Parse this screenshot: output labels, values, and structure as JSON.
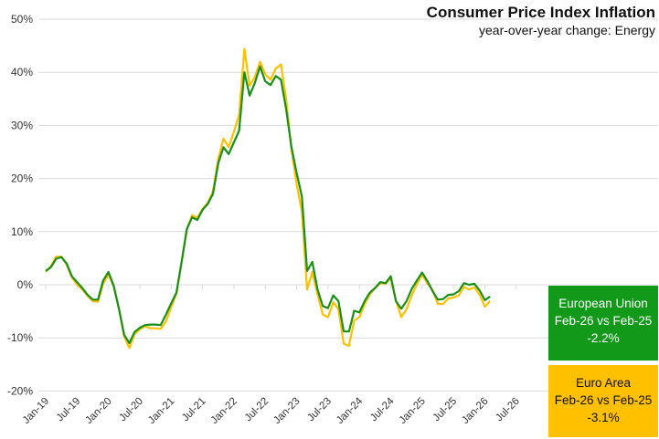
{
  "chart_data": {
    "type": "line",
    "title": "Consumer Price Index Inflation",
    "subtitle": "year-over-year change: Energy",
    "xlabel": "",
    "ylabel": "",
    "ylim": [
      -20,
      50
    ],
    "yticks": [
      -20,
      -10,
      0,
      10,
      20,
      30,
      40,
      50
    ],
    "ytick_labels": [
      "-20%",
      "-10%",
      "0%",
      "10%",
      "20%",
      "30%",
      "40%",
      "50%"
    ],
    "xtick_labels": [
      "Jan-19",
      "Jul-19",
      "Jan-20",
      "Jul-20",
      "Jan-21",
      "Jul-21",
      "Jan-22",
      "Jul-22",
      "Jan-23",
      "Jul-23",
      "Jan-24",
      "Jul-24",
      "Jan-25",
      "Jul-25",
      "Jan-26",
      "Jul-26"
    ],
    "x_start": "Jan-19",
    "x_frequency": "monthly",
    "grid": true,
    "series": [
      {
        "name": "European Union",
        "color": "#189018",
        "values": [
          2.6,
          3.3,
          4.9,
          5.2,
          4.0,
          1.6,
          0.5,
          -0.6,
          -1.9,
          -2.8,
          -2.8,
          0.8,
          2.4,
          -0.2,
          -4.5,
          -9.4,
          -11.0,
          -8.9,
          -8.1,
          -7.6,
          -7.5,
          -7.5,
          -7.6,
          -5.6,
          -3.5,
          -1.5,
          4.3,
          10.5,
          12.7,
          12.2,
          14.1,
          15.2,
          17.1,
          22.9,
          25.9,
          24.6,
          26.8,
          29.0,
          40.0,
          35.6,
          38.0,
          41.1,
          38.3,
          37.6,
          39.3,
          38.6,
          33.0,
          26.0,
          21.0,
          16.6,
          2.6,
          4.3,
          -0.9,
          -4.0,
          -4.4,
          -2.0,
          -3.1,
          -8.8,
          -8.8,
          -4.9,
          -5.2,
          -3.1,
          -1.5,
          -0.6,
          0.5,
          0.3,
          1.6,
          -3.1,
          -4.5,
          -3.1,
          -0.8,
          0.8,
          2.3,
          0.7,
          -1.2,
          -2.8,
          -2.7,
          -1.9,
          -1.8,
          -1.2,
          0.3,
          0.0,
          0.2,
          -1.1,
          -2.9,
          -2.2
        ]
      },
      {
        "name": "Euro Area",
        "color": "#ffc000",
        "values": [
          2.4,
          3.5,
          5.3,
          5.3,
          3.8,
          1.4,
          0.0,
          -0.9,
          -2.1,
          -3.1,
          -3.2,
          0.2,
          1.9,
          -0.3,
          -4.5,
          -9.7,
          -11.9,
          -9.3,
          -8.4,
          -7.8,
          -8.2,
          -8.2,
          -8.3,
          -6.9,
          -4.2,
          -1.7,
          4.3,
          10.4,
          13.1,
          12.6,
          14.3,
          15.4,
          17.6,
          23.7,
          27.5,
          25.9,
          28.8,
          32.0,
          44.4,
          37.5,
          39.1,
          42.0,
          39.6,
          38.6,
          40.7,
          41.5,
          34.9,
          25.5,
          18.9,
          13.7,
          -0.9,
          2.4,
          -1.8,
          -5.6,
          -6.1,
          -3.3,
          -4.6,
          -11.1,
          -11.5,
          -6.7,
          -6.1,
          -3.7,
          -1.8,
          -0.6,
          0.3,
          0.2,
          1.2,
          -3.0,
          -6.1,
          -4.6,
          -2.0,
          0.1,
          1.9,
          0.2,
          -1.0,
          -3.6,
          -3.6,
          -2.6,
          -2.4,
          -2.0,
          -0.4,
          -0.9,
          -0.5,
          -1.9,
          -4.1,
          -3.1
        ]
      }
    ],
    "annotations": [
      {
        "region": "European Union",
        "line1": "European Union",
        "line2": "Feb-26 vs Feb-25",
        "value": "-2.2%",
        "bg": "#12991a"
      },
      {
        "region": "Euro Area",
        "line1": "Euro Area",
        "line2": "Feb-26 vs Feb-25",
        "value": "-3.1%",
        "bg": "#ffc000"
      }
    ]
  }
}
